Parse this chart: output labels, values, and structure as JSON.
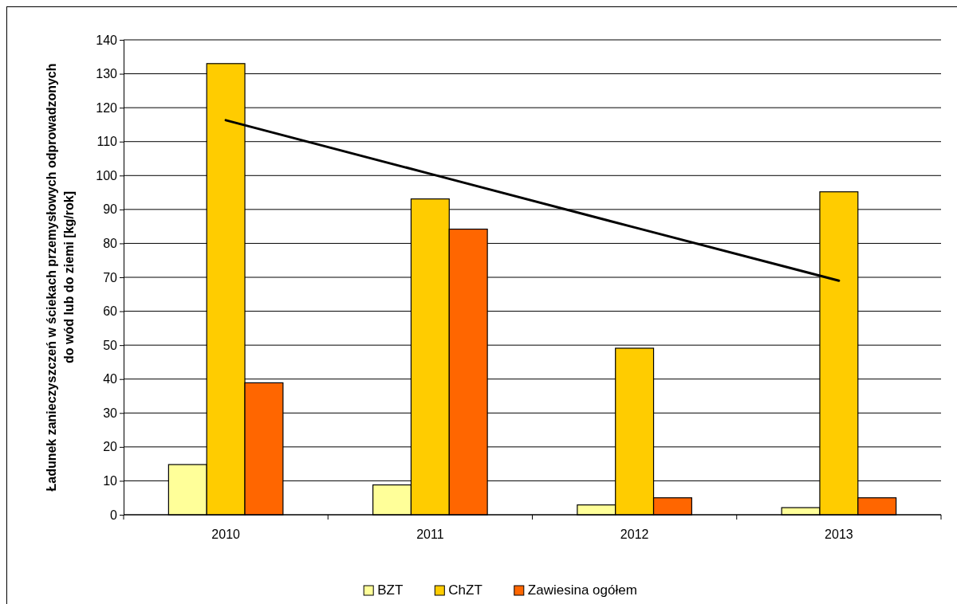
{
  "chart_data": {
    "type": "bar",
    "ylabel": "Ładunek zanieczyszczeń w ściekach przemysłowych odprowadzonych do wód lub do ziemi [kg/rok]",
    "categories": [
      "2010",
      "2011",
      "2012",
      "2013"
    ],
    "series": [
      {
        "name": "BZT",
        "color": "#ffff99",
        "values": [
          14.8,
          8.8,
          2.9,
          2.1
        ]
      },
      {
        "name": "ChZT",
        "color": "#ffcc00",
        "values": [
          133.0,
          93.1,
          49.1,
          95.2
        ]
      },
      {
        "name": "Zawiesina ogółem",
        "color": "#ff6600",
        "values": [
          38.9,
          84.2,
          5.0,
          5.0
        ]
      },
      {
        "type": "line",
        "color": "#000000",
        "values": [
          116.3,
          100.5,
          84.7,
          69.0
        ]
      }
    ],
    "ylim": [
      0,
      140
    ],
    "yticks": [
      0,
      10,
      20,
      30,
      40,
      50,
      60,
      70,
      80,
      90,
      100,
      110,
      120,
      130,
      140
    ],
    "grid": "y",
    "legend": "bottom"
  }
}
